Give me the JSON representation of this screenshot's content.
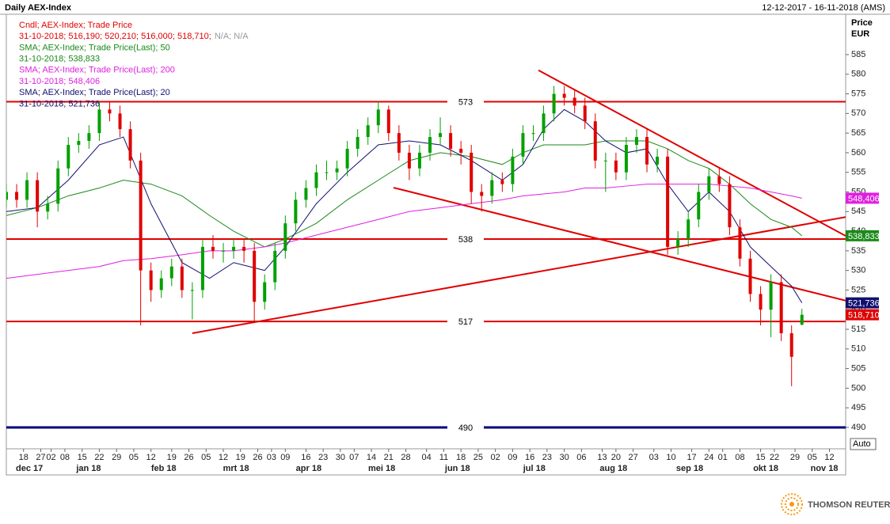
{
  "chart_data": {
    "type": "candlestick",
    "title": "Daily AEX-Index",
    "date_range": "12-12-2017 - 16-11-2018 (AMS)",
    "ylabel": "Price",
    "yunit": "EUR",
    "scale_mode": "Auto",
    "brand": "THOMSON REUTERS",
    "ylim": [
      484.55,
      595.28
    ],
    "yticks": [
      490,
      495,
      500,
      505,
      510,
      515,
      520,
      525,
      530,
      535,
      540,
      545,
      550,
      555,
      560,
      565,
      570,
      575,
      580,
      585
    ],
    "xlim": [
      0,
      243.7
    ],
    "xticks": [
      {
        "value": 5,
        "label": "18"
      },
      {
        "value": 10,
        "label": "27"
      },
      {
        "value": 13,
        "label": "02"
      },
      {
        "value": 17,
        "label": "08"
      },
      {
        "value": 22,
        "label": "15"
      },
      {
        "value": 27,
        "label": "22"
      },
      {
        "value": 32,
        "label": "29"
      },
      {
        "value": 37,
        "label": "05"
      },
      {
        "value": 42,
        "label": "12"
      },
      {
        "value": 48,
        "label": "19"
      },
      {
        "value": 53,
        "label": "26"
      },
      {
        "value": 58,
        "label": "05"
      },
      {
        "value": 63,
        "label": "12"
      },
      {
        "value": 68,
        "label": "19"
      },
      {
        "value": 73,
        "label": "26"
      },
      {
        "value": 77,
        "label": "03"
      },
      {
        "value": 81,
        "label": "09"
      },
      {
        "value": 87,
        "label": "16"
      },
      {
        "value": 92,
        "label": "23"
      },
      {
        "value": 97,
        "label": "30"
      },
      {
        "value": 101,
        "label": "07"
      },
      {
        "value": 106,
        "label": "14"
      },
      {
        "value": 111,
        "label": "21"
      },
      {
        "value": 116,
        "label": "28"
      },
      {
        "value": 122,
        "label": "04"
      },
      {
        "value": 127,
        "label": "11"
      },
      {
        "value": 132,
        "label": "18"
      },
      {
        "value": 137,
        "label": "25"
      },
      {
        "value": 142,
        "label": "02"
      },
      {
        "value": 147,
        "label": "09"
      },
      {
        "value": 152,
        "label": "16"
      },
      {
        "value": 157,
        "label": "23"
      },
      {
        "value": 162,
        "label": "30"
      },
      {
        "value": 167,
        "label": "06"
      },
      {
        "value": 173,
        "label": "13"
      },
      {
        "value": 177,
        "label": "20"
      },
      {
        "value": 182,
        "label": "27"
      },
      {
        "value": 188,
        "label": "03"
      },
      {
        "value": 193,
        "label": "10"
      },
      {
        "value": 199,
        "label": "17"
      },
      {
        "value": 204,
        "label": "24"
      },
      {
        "value": 208,
        "label": "01"
      },
      {
        "value": 213,
        "label": "08"
      },
      {
        "value": 219,
        "label": "15"
      },
      {
        "value": 223,
        "label": "22"
      },
      {
        "value": 229,
        "label": "29"
      },
      {
        "value": 234,
        "label": "05"
      },
      {
        "value": 239,
        "label": "12"
      }
    ],
    "month_ticks": [
      {
        "value": 6.7,
        "label": "dec 17"
      },
      {
        "value": 23.9,
        "label": "jan 18"
      },
      {
        "value": 45.7,
        "label": "feb 18"
      },
      {
        "value": 66.7,
        "label": "mrt 18"
      },
      {
        "value": 87.8,
        "label": "apr 18"
      },
      {
        "value": 109,
        "label": "mei 18"
      },
      {
        "value": 131,
        "label": "jun 18"
      },
      {
        "value": 153.3,
        "label": "jul 18"
      },
      {
        "value": 176.3,
        "label": "aug 18"
      },
      {
        "value": 198.4,
        "label": "sep 18"
      },
      {
        "value": 220.5,
        "label": "okt 18"
      },
      {
        "value": 237.5,
        "label": "nov 18"
      }
    ],
    "candles": {
      "name": "Cndl; AEX-Index; Trade Price",
      "legend_value": "31-10-2018; 516,190; 520,210; 516,000; 518,710;",
      "legend_na": "N/A; N/A",
      "last_label": "518,710",
      "color": "#e00000",
      "up_color": "#00a000",
      "down_color": "#e00000",
      "x": [
        0,
        3,
        6,
        9,
        12,
        15,
        18,
        21,
        24,
        27,
        30,
        33,
        36,
        39,
        42,
        45,
        48,
        51,
        54,
        57,
        60,
        63,
        66,
        69,
        72,
        75,
        78,
        81,
        84,
        87,
        90,
        93,
        96,
        99,
        102,
        105,
        108,
        111,
        114,
        117,
        120,
        123,
        126,
        129,
        132,
        135,
        138,
        141,
        144,
        147,
        150,
        153,
        156,
        159,
        162,
        165,
        168,
        171,
        174,
        177,
        180,
        183,
        186,
        189,
        192,
        195,
        198,
        201,
        204,
        207,
        210,
        213,
        216,
        219,
        222,
        225,
        228,
        231
      ],
      "open": [
        548,
        550,
        548,
        553,
        545,
        547,
        556,
        562,
        563,
        565,
        571,
        570,
        566,
        558,
        530,
        525,
        528,
        531,
        525,
        525,
        536,
        535,
        535,
        536,
        535,
        522,
        527,
        535,
        542,
        548,
        551,
        555,
        555,
        556,
        561,
        564,
        567,
        571,
        565,
        560,
        556,
        560,
        564,
        565,
        561,
        560,
        550,
        549,
        553,
        552,
        559,
        565,
        565,
        570,
        575,
        574,
        572,
        568,
        558,
        558,
        555,
        562,
        564,
        557,
        559,
        536,
        538,
        543,
        550,
        554,
        552,
        541,
        533,
        524,
        520,
        527,
        514,
        516.19
      ],
      "high": [
        552,
        552,
        555,
        555,
        549,
        558,
        564,
        565,
        567,
        573,
        573,
        572,
        568,
        560,
        532,
        530,
        533,
        533,
        527,
        538,
        539,
        537,
        538,
        538,
        537,
        529,
        537,
        544,
        550,
        553,
        557,
        558,
        558,
        563,
        566,
        569,
        573,
        572,
        567,
        562,
        562,
        566,
        569,
        567,
        563,
        562,
        552,
        555,
        555,
        561,
        567,
        567,
        572,
        577,
        577,
        576,
        574,
        570,
        560,
        560,
        564,
        566,
        566,
        561,
        561,
        540,
        545,
        552,
        556,
        556,
        554,
        543,
        535,
        526,
        529,
        529,
        516,
        520.21
      ],
      "low": [
        546,
        546,
        546,
        541,
        543,
        545,
        554,
        560,
        561,
        563,
        568,
        564,
        556,
        516,
        522,
        523,
        526,
        523,
        517.5,
        523,
        533,
        532,
        533,
        532,
        517,
        520,
        525,
        533,
        540,
        546,
        549,
        553,
        553,
        554,
        559,
        562,
        565,
        563,
        558,
        553,
        554,
        558,
        562,
        559,
        557,
        547,
        545,
        547,
        550,
        550,
        557,
        563,
        563,
        568,
        572,
        570,
        566,
        556,
        550,
        553,
        553,
        560,
        555,
        555,
        534,
        534,
        536,
        541,
        548,
        550,
        539,
        531,
        522,
        516,
        513,
        512,
        500.5,
        516.0
      ],
      "close": [
        550,
        548,
        553,
        545,
        547,
        556,
        562,
        563,
        565,
        571,
        570,
        566,
        558,
        530,
        525,
        528,
        531,
        525,
        525,
        536,
        535,
        535,
        536,
        535,
        522,
        527,
        535,
        542,
        548,
        551,
        555,
        555,
        556,
        561,
        564,
        567,
        571,
        565,
        560,
        556,
        560,
        564,
        565,
        561,
        560,
        550,
        549,
        553,
        552,
        559,
        565,
        565,
        570,
        575,
        574,
        572,
        568,
        558,
        558,
        555,
        562,
        564,
        557,
        559,
        536,
        538,
        543,
        550,
        554,
        552,
        541,
        533,
        524,
        520,
        527,
        514,
        508,
        518.71
      ]
    },
    "x": [
      0,
      9,
      18,
      27,
      34,
      42,
      51,
      59,
      66,
      75,
      81,
      90,
      99,
      108,
      117,
      126,
      135,
      144,
      150,
      156,
      162,
      168,
      174,
      180,
      186,
      192,
      198,
      204,
      210,
      216,
      222,
      228,
      231
    ],
    "series": [
      {
        "name": "SMA; AEX-Index; Trade Price(Last);  50",
        "legend_value": "31-10-2018; 538,833",
        "last_label": "538,833",
        "color": "#1a8a1a",
        "values": [
          544,
          546,
          549,
          551,
          553,
          552,
          549,
          544,
          540,
          536,
          538,
          542,
          548,
          553,
          558,
          560,
          559,
          557,
          560,
          562,
          562,
          562,
          563,
          563,
          563,
          561,
          558,
          556,
          552,
          547,
          543,
          541,
          538.833
        ]
      },
      {
        "name": "SMA; AEX-Index; Trade Price(Last);  200",
        "legend_value": "31-10-2018; 548,406",
        "last_label": "548,406",
        "color": "#e020e0",
        "values": [
          528,
          529,
          530,
          531,
          532.5,
          533,
          534,
          535,
          535,
          536,
          537,
          539,
          541,
          543,
          545,
          546,
          547,
          548,
          549,
          549.5,
          550,
          551,
          551,
          551.5,
          552,
          552,
          552,
          552,
          551.5,
          551,
          550,
          549,
          548.406
        ]
      },
      {
        "name": "SMA; AEX-Index; Trade Price(Last);  20",
        "legend_value": "31-10-2018; 521,736",
        "last_label": "521,736",
        "color": "#101070",
        "values": [
          545,
          546,
          553,
          562,
          564,
          547,
          532,
          528,
          532,
          530,
          536,
          547,
          555,
          562,
          563,
          562,
          558,
          553,
          557,
          566,
          571,
          568,
          563,
          560,
          561,
          552,
          545,
          550,
          545,
          536,
          531,
          526,
          521.736
        ]
      }
    ],
    "levels": [
      {
        "value": 573,
        "color": "#e00000"
      },
      {
        "value": 538,
        "color": "#e00000"
      },
      {
        "value": 517,
        "color": "#e00000"
      },
      {
        "value": 490,
        "color": "#000080"
      }
    ],
    "trendlines": [
      {
        "x": [
          154.5,
          243.7
        ],
        "y": [
          581,
          538.8
        ],
        "color": "#e00000"
      },
      {
        "x": [
          112.4,
          243.7
        ],
        "y": [
          551.1,
          522.3
        ],
        "color": "#e00000"
      },
      {
        "x": [
          54,
          243.7
        ],
        "y": [
          514,
          543.6
        ],
        "color": "#e00000"
      }
    ]
  }
}
